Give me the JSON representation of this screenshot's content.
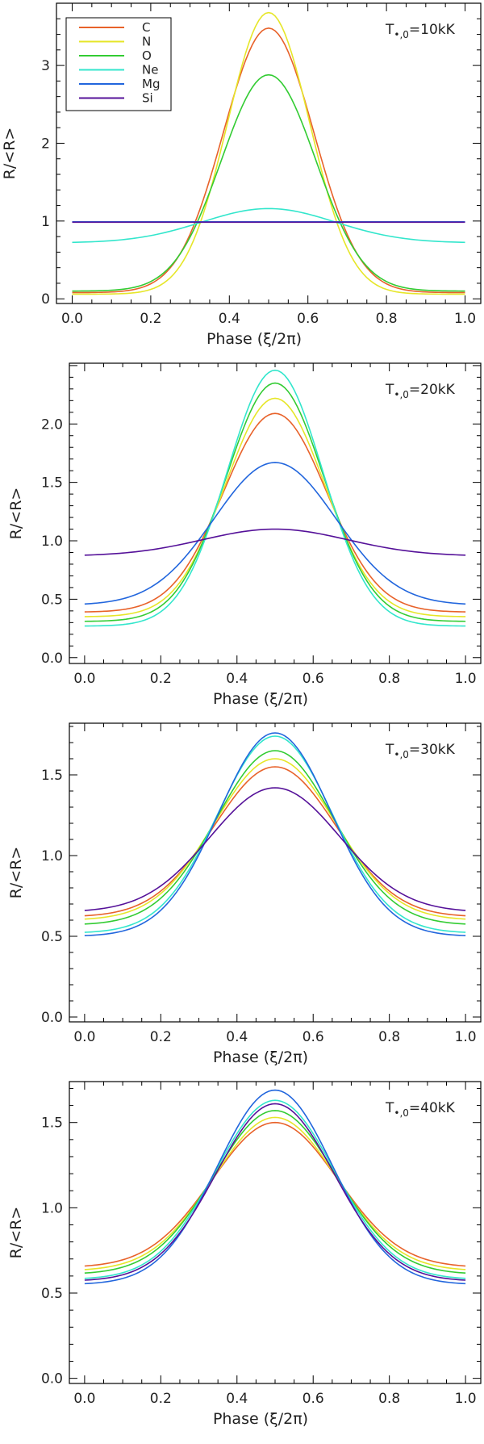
{
  "figure_description_id": "ion-rate-phase-plots",
  "legend": [
    {
      "name": "C",
      "color": "#e8622a"
    },
    {
      "name": "N",
      "color": "#e6e629"
    },
    {
      "name": "O",
      "color": "#33cc33"
    },
    {
      "name": "Ne",
      "color": "#33e6cc"
    },
    {
      "name": "Mg",
      "color": "#2266dd"
    },
    {
      "name": "Si",
      "color": "#551199"
    }
  ],
  "chart_data": [
    {
      "type": "line",
      "annotation": "T•,0=10kK",
      "annotation_main": "T",
      "annotation_sub": "•,0",
      "annotation_value": "=10kK",
      "xlabel": "Phase (ξ/2π)",
      "ylabel": "R/<R>",
      "xlim": [
        -0.04,
        1.04
      ],
      "ylim": [
        -0.06,
        3.8
      ],
      "xticks": [
        "0.0",
        "0.2",
        "0.4",
        "0.6",
        "0.8",
        "1.0"
      ],
      "yticks": [
        "0",
        "1",
        "2",
        "3"
      ],
      "yticks_values": [
        0,
        1,
        2,
        3
      ],
      "show_legend": true,
      "series": [
        {
          "name": "C",
          "color": "#e8622a",
          "min": 0.08,
          "max": 3.48,
          "width": 0.115
        },
        {
          "name": "N",
          "color": "#e6e629",
          "min": 0.06,
          "max": 3.68,
          "width": 0.105
        },
        {
          "name": "O",
          "color": "#33cc33",
          "min": 0.1,
          "max": 2.88,
          "width": 0.12
        },
        {
          "name": "Ne",
          "color": "#33e6cc",
          "min": 0.72,
          "max": 1.16,
          "width": 0.17
        },
        {
          "name": "Mg",
          "color": "#2266dd",
          "min": 0.99,
          "max": 0.99,
          "width": 0.2
        },
        {
          "name": "Si",
          "color": "#551199",
          "min": 0.985,
          "max": 0.985,
          "width": 0.2
        }
      ]
    },
    {
      "type": "line",
      "annotation": "T•,0=20kK",
      "annotation_main": "T",
      "annotation_sub": "•,0",
      "annotation_value": "=20kK",
      "xlabel": "Phase (ξ/2π)",
      "ylabel": "R/<R>",
      "xlim": [
        -0.04,
        1.04
      ],
      "ylim": [
        -0.05,
        2.52
      ],
      "xticks": [
        "0.0",
        "0.2",
        "0.4",
        "0.6",
        "0.8",
        "1.0"
      ],
      "yticks": [
        "0.0",
        "0.5",
        "1.0",
        "1.5",
        "2.0"
      ],
      "yticks_values": [
        0,
        0.5,
        1.0,
        1.5,
        2.0
      ],
      "show_legend": false,
      "series": [
        {
          "name": "C",
          "color": "#e8622a",
          "min": 0.39,
          "max": 2.09,
          "width": 0.135
        },
        {
          "name": "N",
          "color": "#e6e629",
          "min": 0.35,
          "max": 2.22,
          "width": 0.13
        },
        {
          "name": "O",
          "color": "#33cc33",
          "min": 0.31,
          "max": 2.35,
          "width": 0.128
        },
        {
          "name": "Ne",
          "color": "#33e6cc",
          "min": 0.27,
          "max": 2.46,
          "width": 0.125
        },
        {
          "name": "Mg",
          "color": "#2266dd",
          "min": 0.45,
          "max": 1.67,
          "width": 0.16
        },
        {
          "name": "Si",
          "color": "#551199",
          "min": 0.87,
          "max": 1.1,
          "width": 0.19
        }
      ]
    },
    {
      "type": "line",
      "annotation": "T•,0=30kK",
      "annotation_main": "T",
      "annotation_sub": "•,0",
      "annotation_value": "=30kK",
      "xlabel": "Phase (ξ/2π)",
      "ylabel": "R/<R>",
      "xlim": [
        -0.04,
        1.04
      ],
      "ylim": [
        -0.03,
        1.82
      ],
      "xticks": [
        "0.0",
        "0.2",
        "0.4",
        "0.6",
        "0.8",
        "1.0"
      ],
      "yticks": [
        "0.0",
        "0.5",
        "1.0",
        "1.5"
      ],
      "yticks_values": [
        0,
        0.5,
        1.0,
        1.5
      ],
      "show_legend": false,
      "series": [
        {
          "name": "C",
          "color": "#e8622a",
          "min": 0.62,
          "max": 1.55,
          "width": 0.16
        },
        {
          "name": "N",
          "color": "#e6e629",
          "min": 0.6,
          "max": 1.6,
          "width": 0.158
        },
        {
          "name": "O",
          "color": "#33cc33",
          "min": 0.57,
          "max": 1.65,
          "width": 0.155
        },
        {
          "name": "Ne",
          "color": "#33e6cc",
          "min": 0.52,
          "max": 1.74,
          "width": 0.15
        },
        {
          "name": "Mg",
          "color": "#2266dd",
          "min": 0.5,
          "max": 1.76,
          "width": 0.148
        },
        {
          "name": "Si",
          "color": "#551199",
          "min": 0.65,
          "max": 1.42,
          "width": 0.17
        }
      ]
    },
    {
      "type": "line",
      "annotation": "T•,0=40kK",
      "annotation_main": "T",
      "annotation_sub": "•,0",
      "annotation_value": "=40kK",
      "xlabel": "Phase (ξ/2π)",
      "ylabel": "R/<R>",
      "xlim": [
        -0.04,
        1.04
      ],
      "ylim": [
        -0.03,
        1.74
      ],
      "xticks": [
        "0.0",
        "0.2",
        "0.4",
        "0.6",
        "0.8",
        "1.0"
      ],
      "yticks": [
        "0.0",
        "0.5",
        "1.0",
        "1.5"
      ],
      "yticks_values": [
        0,
        0.5,
        1.0,
        1.5
      ],
      "show_legend": false,
      "series": [
        {
          "name": "C",
          "color": "#e8622a",
          "min": 0.65,
          "max": 1.5,
          "width": 0.165
        },
        {
          "name": "N",
          "color": "#e6e629",
          "min": 0.63,
          "max": 1.53,
          "width": 0.162
        },
        {
          "name": "O",
          "color": "#33cc33",
          "min": 0.61,
          "max": 1.57,
          "width": 0.16
        },
        {
          "name": "Ne",
          "color": "#33e6cc",
          "min": 0.58,
          "max": 1.63,
          "width": 0.156
        },
        {
          "name": "Mg",
          "color": "#2266dd",
          "min": 0.55,
          "max": 1.69,
          "width": 0.152
        },
        {
          "name": "Si",
          "color": "#551199",
          "min": 0.57,
          "max": 1.61,
          "width": 0.155
        }
      ]
    }
  ]
}
